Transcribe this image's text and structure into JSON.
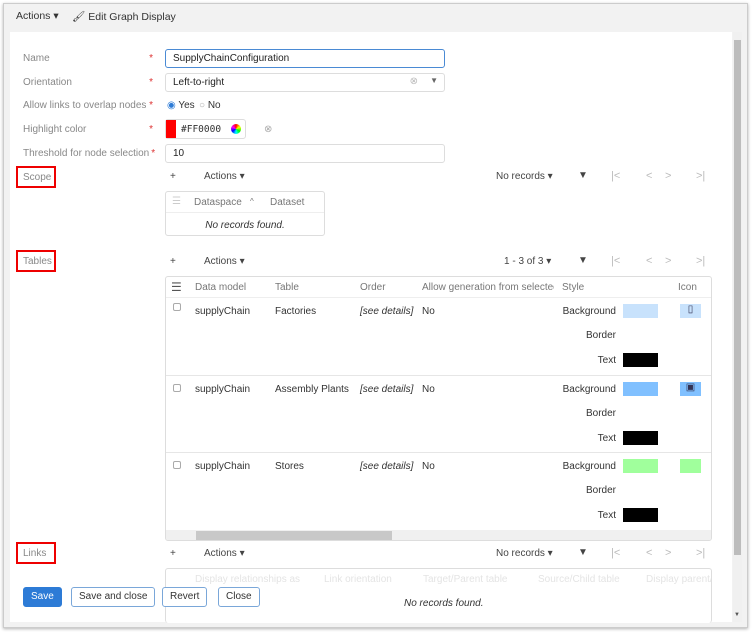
{
  "toolbar": {
    "actions_label": "Actions",
    "edit_label": "Edit Graph Display"
  },
  "form": {
    "name": {
      "label": "Name",
      "value": "SupplyChainConfiguration"
    },
    "orientation": {
      "label": "Orientation",
      "value": "Left-to-right"
    },
    "overlap": {
      "label": "Allow links to overlap nodes",
      "yes": "Yes",
      "no": "No",
      "selected": "Yes"
    },
    "highlight": {
      "label": "Highlight color",
      "value": "#FF0000",
      "color": "#FF0000"
    },
    "threshold": {
      "label": "Threshold for node selection",
      "value": "10"
    },
    "required_mark": "*"
  },
  "scope": {
    "label": "Scope",
    "add": "+",
    "actions": "Actions",
    "records": "No records",
    "columns": [
      "Dataspace",
      "Dataset"
    ],
    "empty": "No records found."
  },
  "tables": {
    "label": "Tables",
    "add": "+",
    "actions": "Actions",
    "records": "1 - 3 of 3",
    "columns": [
      "Data model",
      "Table",
      "Order",
      "Allow generation from selectec",
      "Style",
      "Icon"
    ],
    "style_labels": {
      "background": "Background",
      "border": "Border",
      "text": "Text"
    },
    "rows": [
      {
        "model": "supplyChain",
        "table": "Factories",
        "order": "[see details]",
        "allow": "No",
        "bg": "#C8E2FC",
        "text_color": "#000000",
        "icon": "phone-icon",
        "icon_bg": "#C8E2FC"
      },
      {
        "model": "supplyChain",
        "table": "Assembly Plants",
        "order": "[see details]",
        "allow": "No",
        "bg": "#80C0FF",
        "text_color": "#000000",
        "icon": "clipboard-icon",
        "icon_bg": "#80C0FF"
      },
      {
        "model": "supplyChain",
        "table": "Stores",
        "order": "[see details]",
        "allow": "No",
        "bg": "#A0FF9C",
        "text_color": "#000000",
        "icon": "none",
        "icon_bg": "#A0FF9C"
      }
    ]
  },
  "links": {
    "label": "Links",
    "add": "+",
    "actions": "Actions",
    "records": "No records",
    "columns": [
      "Display relationships as",
      "Link orientation",
      "Target/Parent table",
      "Source/Child table",
      "Display parent/"
    ],
    "empty": "No records found."
  },
  "footer": {
    "save": "Save",
    "save_close": "Save and close",
    "revert": "Revert",
    "close": "Close"
  },
  "colors": {
    "accent": "#2D7BD6",
    "highlight_box": "#EE0000"
  }
}
